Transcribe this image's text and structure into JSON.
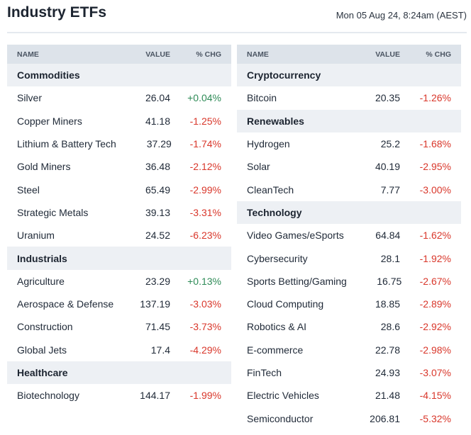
{
  "header": {
    "title": "Industry ETFs",
    "timestamp": "Mon 05 Aug 24, 8:24am (AEST)"
  },
  "columns": {
    "name": "NAME",
    "value": "VALUE",
    "chg": "% CHG"
  },
  "colors": {
    "positive": "#2e8b57",
    "negative": "#d9372b",
    "header_bg": "#dde3ea",
    "group_bg": "#edf0f4"
  },
  "left_table": [
    {
      "group": "Commodities",
      "rows": [
        {
          "name": "Silver",
          "value": "26.04",
          "chg": "+0.04%"
        },
        {
          "name": "Copper Miners",
          "value": "41.18",
          "chg": "-1.25%"
        },
        {
          "name": "Lithium & Battery Tech",
          "value": "37.29",
          "chg": "-1.74%"
        },
        {
          "name": "Gold Miners",
          "value": "36.48",
          "chg": "-2.12%"
        },
        {
          "name": "Steel",
          "value": "65.49",
          "chg": "-2.99%"
        },
        {
          "name": "Strategic Metals",
          "value": "39.13",
          "chg": "-3.31%"
        },
        {
          "name": "Uranium",
          "value": "24.52",
          "chg": "-6.23%"
        }
      ]
    },
    {
      "group": "Industrials",
      "rows": [
        {
          "name": "Agriculture",
          "value": "23.29",
          "chg": "+0.13%"
        },
        {
          "name": "Aerospace & Defense",
          "value": "137.19",
          "chg": "-3.03%"
        },
        {
          "name": "Construction",
          "value": "71.45",
          "chg": "-3.73%"
        },
        {
          "name": "Global Jets",
          "value": "17.4",
          "chg": "-4.29%"
        }
      ]
    },
    {
      "group": "Healthcare",
      "rows": [
        {
          "name": "Biotechnology",
          "value": "144.17",
          "chg": "-1.99%"
        }
      ]
    }
  ],
  "right_table": [
    {
      "group": "Cryptocurrency",
      "rows": [
        {
          "name": "Bitcoin",
          "value": "20.35",
          "chg": "-1.26%"
        }
      ]
    },
    {
      "group": "Renewables",
      "rows": [
        {
          "name": "Hydrogen",
          "value": "25.2",
          "chg": "-1.68%"
        },
        {
          "name": "Solar",
          "value": "40.19",
          "chg": "-2.95%"
        },
        {
          "name": "CleanTech",
          "value": "7.77",
          "chg": "-3.00%"
        }
      ]
    },
    {
      "group": "Technology",
      "rows": [
        {
          "name": "Video Games/eSports",
          "value": "64.84",
          "chg": "-1.62%"
        },
        {
          "name": "Cybersecurity",
          "value": "28.1",
          "chg": "-1.92%"
        },
        {
          "name": "Sports Betting/Gaming",
          "value": "16.75",
          "chg": "-2.67%"
        },
        {
          "name": "Cloud Computing",
          "value": "18.85",
          "chg": "-2.89%"
        },
        {
          "name": "Robotics & AI",
          "value": "28.6",
          "chg": "-2.92%"
        },
        {
          "name": "E-commerce",
          "value": "22.78",
          "chg": "-2.98%"
        },
        {
          "name": "FinTech",
          "value": "24.93",
          "chg": "-3.07%"
        },
        {
          "name": "Electric Vehicles",
          "value": "21.48",
          "chg": "-4.15%"
        },
        {
          "name": "Semiconductor",
          "value": "206.81",
          "chg": "-5.32%"
        }
      ]
    }
  ]
}
